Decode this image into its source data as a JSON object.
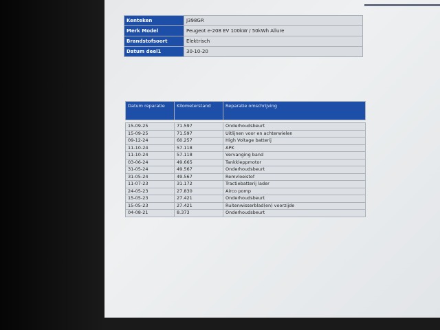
{
  "vehicle_info": [
    {
      "label": "Kenteken",
      "value": "J398GR"
    },
    {
      "label": "Merk Model",
      "value": "Peugeot e-208 EV 100kW / 50kWh Allure"
    },
    {
      "label": "Brandstofsoort",
      "value": "Elektrisch"
    },
    {
      "label": "Datum deel1",
      "value": "30-10-20"
    }
  ],
  "repairs": {
    "headers": [
      "Datum reparatie",
      "Kilometerstand",
      "Reparatie omschrijving"
    ],
    "rows": [
      [
        "15-09-25",
        "71.597",
        "Onderhoudsbeurt"
      ],
      [
        "15-09-25",
        "71.597",
        "Uitlijnen voor en achterwielen"
      ],
      [
        "09-12-24",
        "60.257",
        "High Voltage batterij"
      ],
      [
        "11-10-24",
        "57.118",
        "APK"
      ],
      [
        "11-10-24",
        "57.118",
        "Vervanging band"
      ],
      [
        "03-06-24",
        "49.665",
        "Tankkleppmotor"
      ],
      [
        "31-05-24",
        "49.567",
        "Onderhoudsbeurt"
      ],
      [
        "31-05-24",
        "49.567",
        "Remvloeistof"
      ],
      [
        "11-07-23",
        "31.172",
        "Tractiebatterij lader"
      ],
      [
        "24-05-23",
        "27.830",
        "Airco pomp"
      ],
      [
        "15-05-23",
        "27.421",
        "Onderhoudsbeurt"
      ],
      [
        "15-05-23",
        "27.421",
        "Ruitenwisserblad(en) voorzijde"
      ],
      [
        "04-08-21",
        "8.373",
        "Onderhoudsbeurt"
      ]
    ]
  },
  "colors": {
    "header_blue": "#1e4fa8",
    "cell_grey": "#d9dce0"
  }
}
